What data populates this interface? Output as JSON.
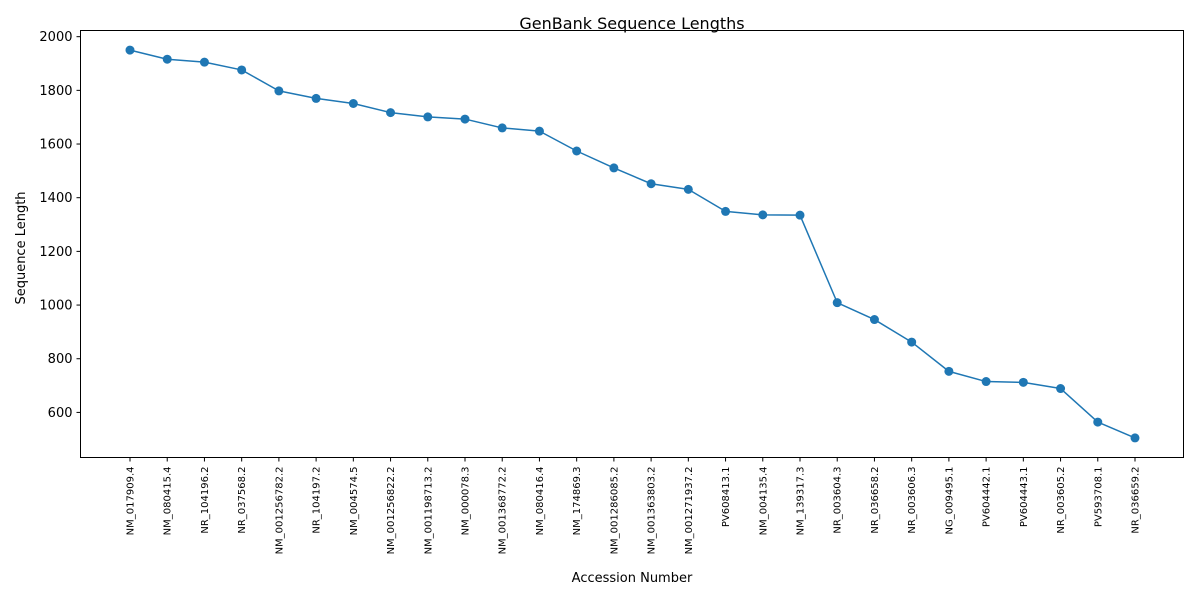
{
  "chart_data": {
    "type": "line",
    "title": "GenBank Sequence Lengths",
    "xlabel": "Accession Number",
    "ylabel": "Sequence Length",
    "categories": [
      "NM_017909.4",
      "NM_080415.4",
      "NR_104196.2",
      "NR_037568.2",
      "NM_001256782.2",
      "NR_104197.2",
      "NM_004574.5",
      "NM_001256822.2",
      "NM_001198713.2",
      "NM_000078.3",
      "NM_001368772.2",
      "NM_080416.4",
      "NM_174869.3",
      "NM_001286085.2",
      "NM_001363803.2",
      "NM_001271937.2",
      "PV608413.1",
      "NM_004135.4",
      "NM_139317.3",
      "NR_003604.3",
      "NR_036658.2",
      "NR_003606.3",
      "NG_009495.1",
      "PV604442.1",
      "PV604443.1",
      "NR_003605.2",
      "PV593708.1",
      "NR_036659.2"
    ],
    "series": [
      {
        "values": [
          1950,
          1916,
          1905,
          1876,
          1798,
          1770,
          1751,
          1717,
          1701,
          1693,
          1660,
          1648,
          1574,
          1511,
          1452,
          1431,
          1349,
          1336,
          1335,
          1009,
          946,
          862,
          753,
          715,
          712,
          689,
          564,
          505
        ],
        "color": "#1f77b4"
      }
    ],
    "yticks": [
      600,
      800,
      1000,
      1200,
      1400,
      1600,
      1800,
      2000
    ],
    "ylim": [
      432,
      2023
    ],
    "grid": false,
    "legend": "none"
  }
}
